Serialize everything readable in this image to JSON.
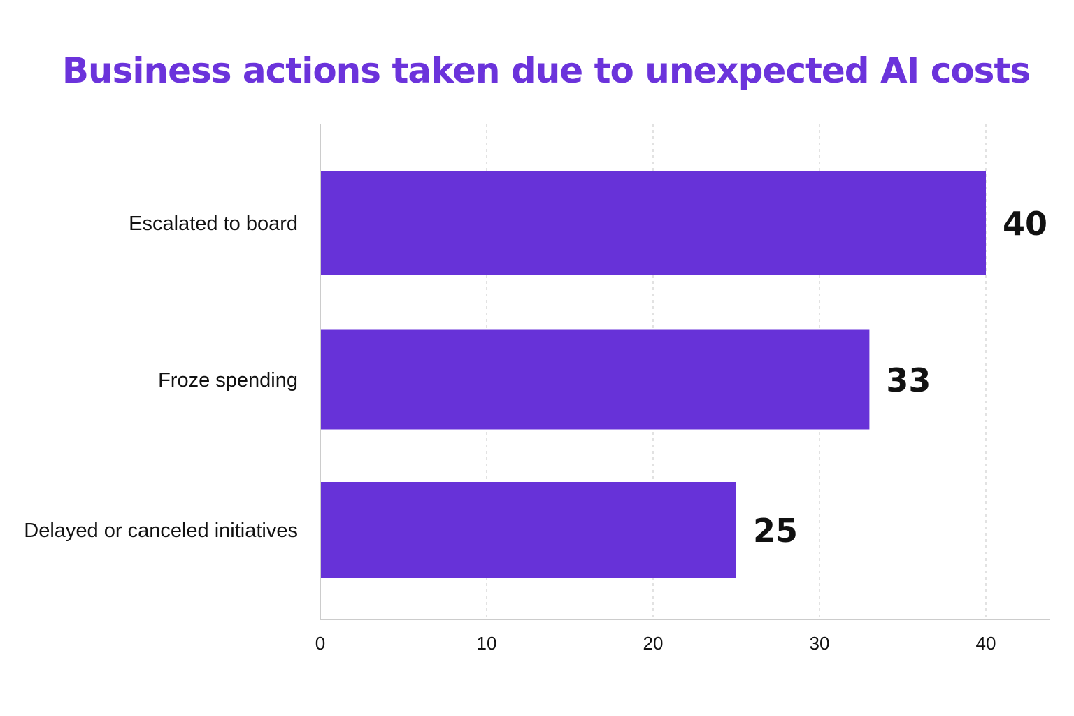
{
  "chart_data": {
    "type": "bar",
    "orientation": "horizontal",
    "title": "Business actions taken due to unexpected AI costs",
    "xlabel": "",
    "ylabel": "",
    "categories": [
      "Escalated to board",
      "Froze spending",
      "Delayed or canceled initiatives"
    ],
    "values": [
      40,
      33,
      25
    ],
    "data_labels": [
      "40",
      "33",
      "25"
    ],
    "xlim": [
      0,
      43
    ],
    "x_ticks": [
      0,
      10,
      20,
      30,
      40
    ],
    "x_tick_labels": [
      "0",
      "10",
      "20",
      "30",
      "40"
    ],
    "grid": "vertical dashed",
    "legend": "none",
    "colors": {
      "bar": "#6732d8",
      "title": "#6b33db",
      "text": "#111111",
      "axis": "#cccccc",
      "grid": "#d8d8d8"
    }
  }
}
